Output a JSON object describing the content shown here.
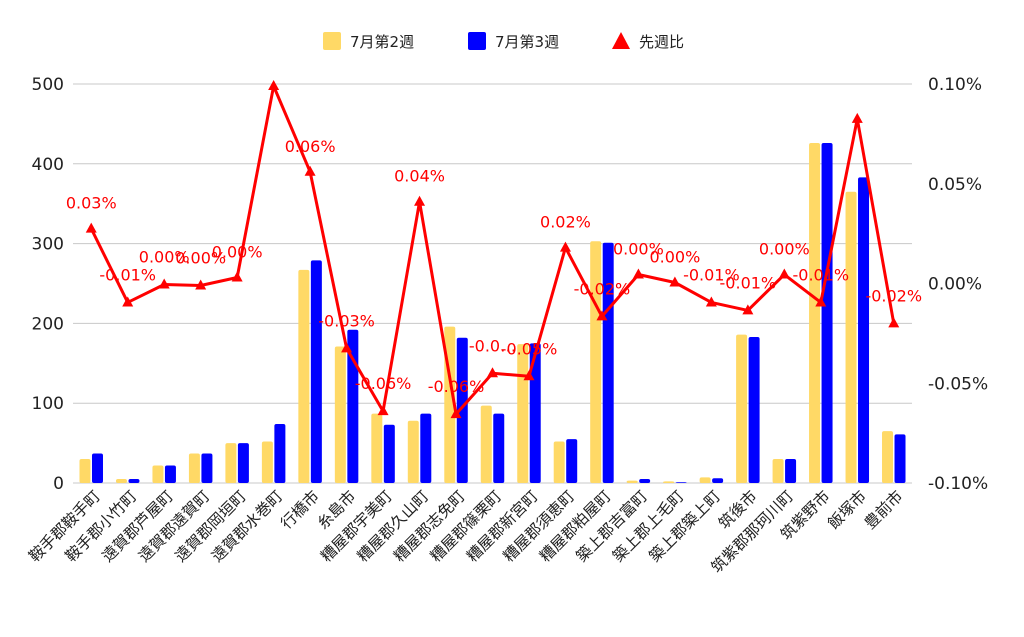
{
  "chart_data": {
    "type": "bar",
    "categories": [
      "鞍手郡鞍手町",
      "鞍手郡小竹町",
      "遠賀郡芦屋町",
      "遠賀郡遠賀町",
      "遠賀郡岡垣町",
      "遠賀郡水巻町",
      "行橋市",
      "糸島市",
      "糟屋郡宇美町",
      "糟屋郡久山町",
      "糟屋郡志免町",
      "糟屋郡篠栗町",
      "糟屋郡新宮町",
      "糟屋郡須恵町",
      "糟屋郡粕屋町",
      "築上郡吉富町",
      "築上郡上毛町",
      "築上郡築上町",
      "筑後市",
      "筑紫郡那珂川町",
      "筑紫野市",
      "飯塚市",
      "豊前市"
    ],
    "series": [
      {
        "name": "7月第2週",
        "type": "bar",
        "axis": "left",
        "color": "#FFD966",
        "values": [
          30,
          5,
          22,
          37,
          50,
          52,
          267,
          171,
          87,
          78,
          196,
          97,
          174,
          52,
          303,
          3,
          2,
          7,
          186,
          30,
          426,
          365,
          65
        ]
      },
      {
        "name": "7月第3週",
        "type": "bar",
        "axis": "left",
        "color": "#0000FF",
        "values": [
          37,
          5,
          22,
          37,
          50,
          74,
          279,
          192,
          73,
          87,
          182,
          87,
          175,
          55,
          301,
          5,
          1,
          6,
          183,
          30,
          426,
          383,
          61
        ]
      },
      {
        "name": "先週比",
        "type": "line",
        "axis": "right",
        "color": "#FF0000",
        "marker": "triangle",
        "values": [
          0.0275,
          -0.0095,
          -0.0005,
          -0.001,
          0.003,
          0.099,
          0.056,
          -0.0325,
          -0.064,
          0.041,
          -0.0655,
          -0.045,
          -0.0465,
          0.018,
          -0.0165,
          0.0045,
          0.0005,
          -0.0095,
          -0.0135,
          0.0045,
          -0.0095,
          0.0825,
          -0.02
        ]
      }
    ],
    "point_labels": [
      "0.03%",
      "-0.01%",
      "0.00%",
      "0.00%",
      "0.00%",
      "",
      "0.06%",
      "-0.03%",
      "-0.06%",
      "0.04%",
      "-0.06%",
      "-0.0…",
      "-0.05%",
      "0.02%",
      "-0.02%",
      "0.00%",
      "0.00%",
      "-0.01%",
      "-0.01%",
      "0.00%",
      "-0.01%",
      "",
      "-0.02%"
    ],
    "y_left": {
      "ylim": [
        0,
        500
      ],
      "ticks": [
        "0",
        "100",
        "200",
        "300",
        "400",
        "500"
      ]
    },
    "y_right": {
      "ylim": [
        -0.1,
        0.1
      ],
      "ticks": [
        "-0.10%",
        "-0.05%",
        "0.00%",
        "0.05%",
        "0.10%"
      ]
    },
    "grid": true,
    "legend_position": "top-center"
  }
}
